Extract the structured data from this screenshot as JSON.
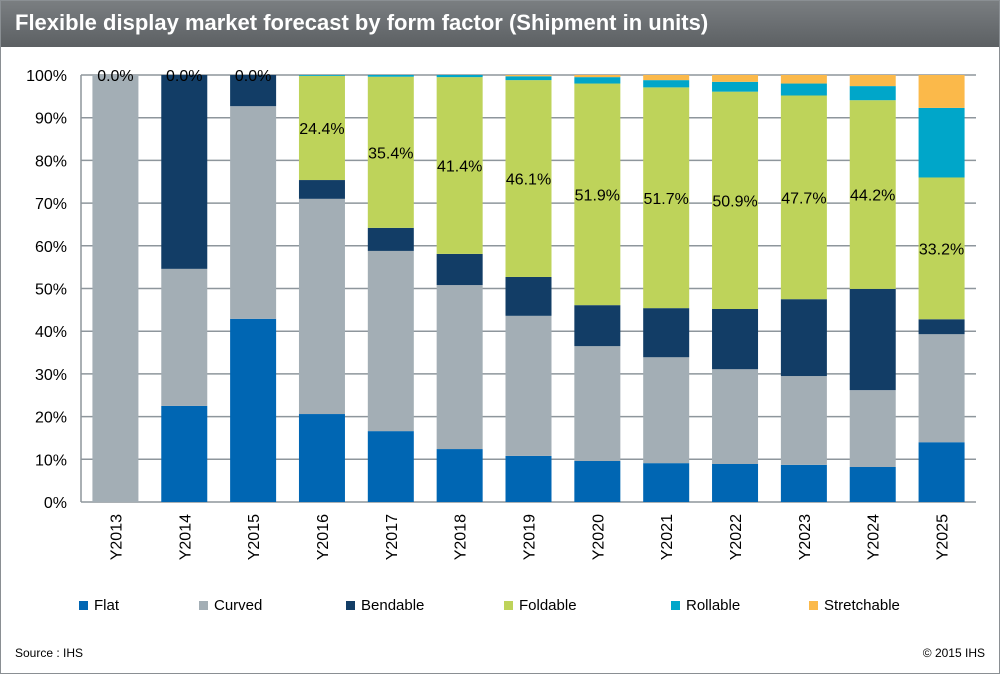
{
  "header": {
    "title": "Flexible display market forecast by form factor (Shipment in units)"
  },
  "footer": {
    "source": "Source : IHS",
    "copyright": "© 2015 IHS"
  },
  "chart_data": {
    "type": "bar",
    "stacked": "percent",
    "title": "Flexible display market forecast by form factor (Shipment in units)",
    "categories": [
      "Y2013",
      "Y2014",
      "Y2015",
      "Y2016",
      "Y2017",
      "Y2018",
      "Y2019",
      "Y2020",
      "Y2021",
      "Y2022",
      "Y2023",
      "Y2024",
      "Y2025"
    ],
    "ylim": [
      0,
      100
    ],
    "yticks": [
      "0%",
      "10%",
      "20%",
      "30%",
      "40%",
      "50%",
      "60%",
      "70%",
      "80%",
      "90%",
      "100%"
    ],
    "grid": true,
    "legend": "bottom",
    "series": [
      {
        "name": "Flat",
        "color": "#0066b3",
        "values": [
          0,
          22.5,
          42.9,
          20.6,
          16.6,
          12.4,
          10.8,
          9.6,
          9.1,
          8.9,
          8.7,
          8.2,
          14.0
        ]
      },
      {
        "name": "Curved",
        "color": "#a3aeb5",
        "values": [
          100,
          32.1,
          49.8,
          50.4,
          42.2,
          38.4,
          32.8,
          26.9,
          24.8,
          22.2,
          20.8,
          18.0,
          25.3
        ]
      },
      {
        "name": "Bendable",
        "color": "#123d66",
        "values": [
          0,
          45.4,
          7.3,
          4.4,
          5.4,
          7.3,
          9.1,
          9.6,
          11.5,
          14.1,
          18.0,
          23.7,
          3.5
        ]
      },
      {
        "name": "Foldable",
        "color": "#bed35a",
        "values": [
          0,
          0,
          0,
          24.4,
          35.4,
          41.4,
          46.1,
          51.9,
          51.7,
          50.9,
          47.7,
          44.2,
          33.2
        ]
      },
      {
        "name": "Rollable",
        "color": "#00a6c9",
        "values": [
          0,
          0,
          0,
          0.2,
          0.4,
          0.5,
          0.9,
          1.5,
          1.7,
          2.3,
          2.8,
          3.3,
          16.3
        ]
      },
      {
        "name": "Stretchable",
        "color": "#fbb94a",
        "values": [
          0,
          0,
          0,
          0,
          0,
          0,
          0.3,
          0.5,
          1.2,
          1.6,
          2.0,
          2.6,
          7.7
        ]
      }
    ],
    "data_labels": [
      "0.0%",
      "0.0%",
      "0.0%",
      "24.4%",
      "35.4%",
      "41.4%",
      "46.1%",
      "51.9%",
      "51.7%",
      "50.9%",
      "47.7%",
      "44.2%",
      "33.2%"
    ]
  }
}
